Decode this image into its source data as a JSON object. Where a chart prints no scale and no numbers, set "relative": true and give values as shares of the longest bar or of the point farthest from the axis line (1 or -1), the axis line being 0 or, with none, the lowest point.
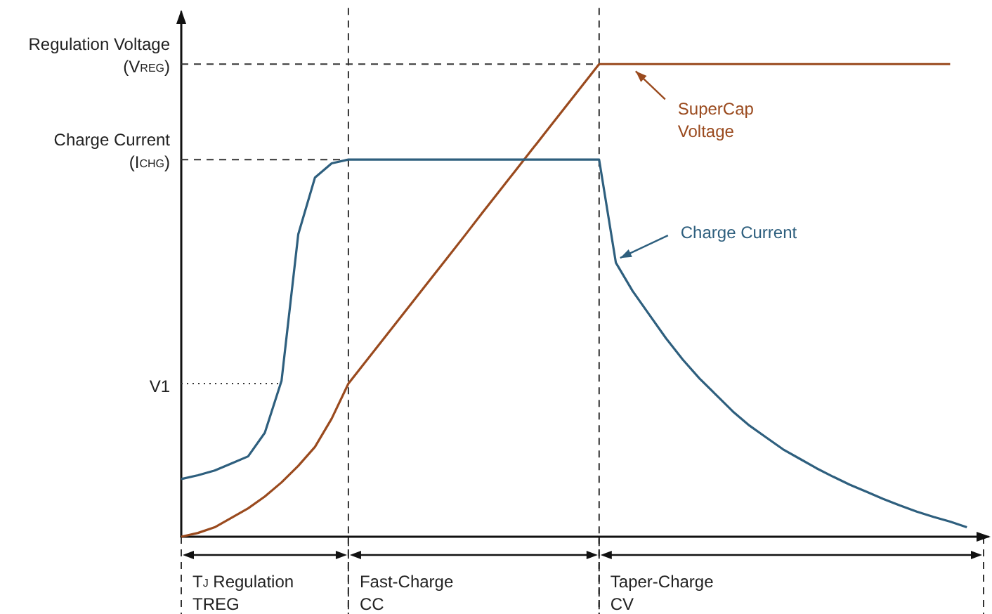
{
  "chart_data": {
    "type": "line",
    "relative": true,
    "grid": false,
    "legend": false,
    "marker": "none",
    "line_style": "solid",
    "categories": [
      null,
      null,
      null,
      null,
      null,
      null,
      null,
      null,
      null,
      null,
      null,
      null,
      null,
      null,
      null,
      null,
      null,
      null,
      null,
      null,
      null,
      null,
      null,
      null,
      null,
      null,
      null,
      null,
      null,
      null,
      null,
      null,
      null,
      null,
      null,
      null,
      null,
      null,
      null,
      null,
      null,
      null,
      null,
      null,
      null,
      null,
      null,
      null,
      null
    ],
    "series": [
      {
        "name": "SuperCap\nVoltage",
        "color": "#9a4a1e",
        "values": [
          0,
          0.008,
          0.02,
          0.04,
          0.06,
          0.085,
          0.115,
          0.15,
          0.19,
          0.25,
          0.324,
          0.369,
          0.414,
          0.459,
          0.504,
          0.549,
          0.594,
          0.639,
          0.685,
          0.73,
          0.775,
          0.82,
          0.865,
          0.91,
          0.955,
          1,
          1,
          1,
          1,
          1,
          1,
          1,
          1,
          1,
          1,
          1,
          1,
          1,
          1,
          1,
          1,
          1,
          1,
          1,
          1,
          1,
          1,
          null,
          null
        ]
      },
      {
        "name": "Charge Current",
        "color": "#2e5f7e",
        "values": [
          0.122,
          0.13,
          0.14,
          0.155,
          0.17,
          0.22,
          0.33,
          0.64,
          0.76,
          0.79,
          0.798,
          0.798,
          0.798,
          0.798,
          0.798,
          0.798,
          0.798,
          0.798,
          0.798,
          0.798,
          0.798,
          0.798,
          0.798,
          0.798,
          0.798,
          0.798,
          0.58,
          0.52,
          0.47,
          0.42,
          0.375,
          0.335,
          0.3,
          0.265,
          0.235,
          0.21,
          0.185,
          0.165,
          0.145,
          0.127,
          0.11,
          0.095,
          0.08,
          0.066,
          0.053,
          0.042,
          0.032,
          0.02,
          null
        ]
      }
    ],
    "ref_lines": [
      {
        "axis": "y",
        "value": 1,
        "label": "Regulation Voltage\n(V$_{REG}$)",
        "line_style": "dashed"
      },
      {
        "axis": "y",
        "value": 0.798,
        "label": "Charge Current\n(I$_{CHG}$)",
        "line_style": "dashed"
      },
      {
        "axis": "y",
        "value": 0.324,
        "label": "V1",
        "line_style": "dotted"
      }
    ],
    "annotations": [
      "T$_{J}$ Regulation\nTREG",
      "Fast-Charge\nCC",
      "Taper-Charge\nCV"
    ]
  }
}
